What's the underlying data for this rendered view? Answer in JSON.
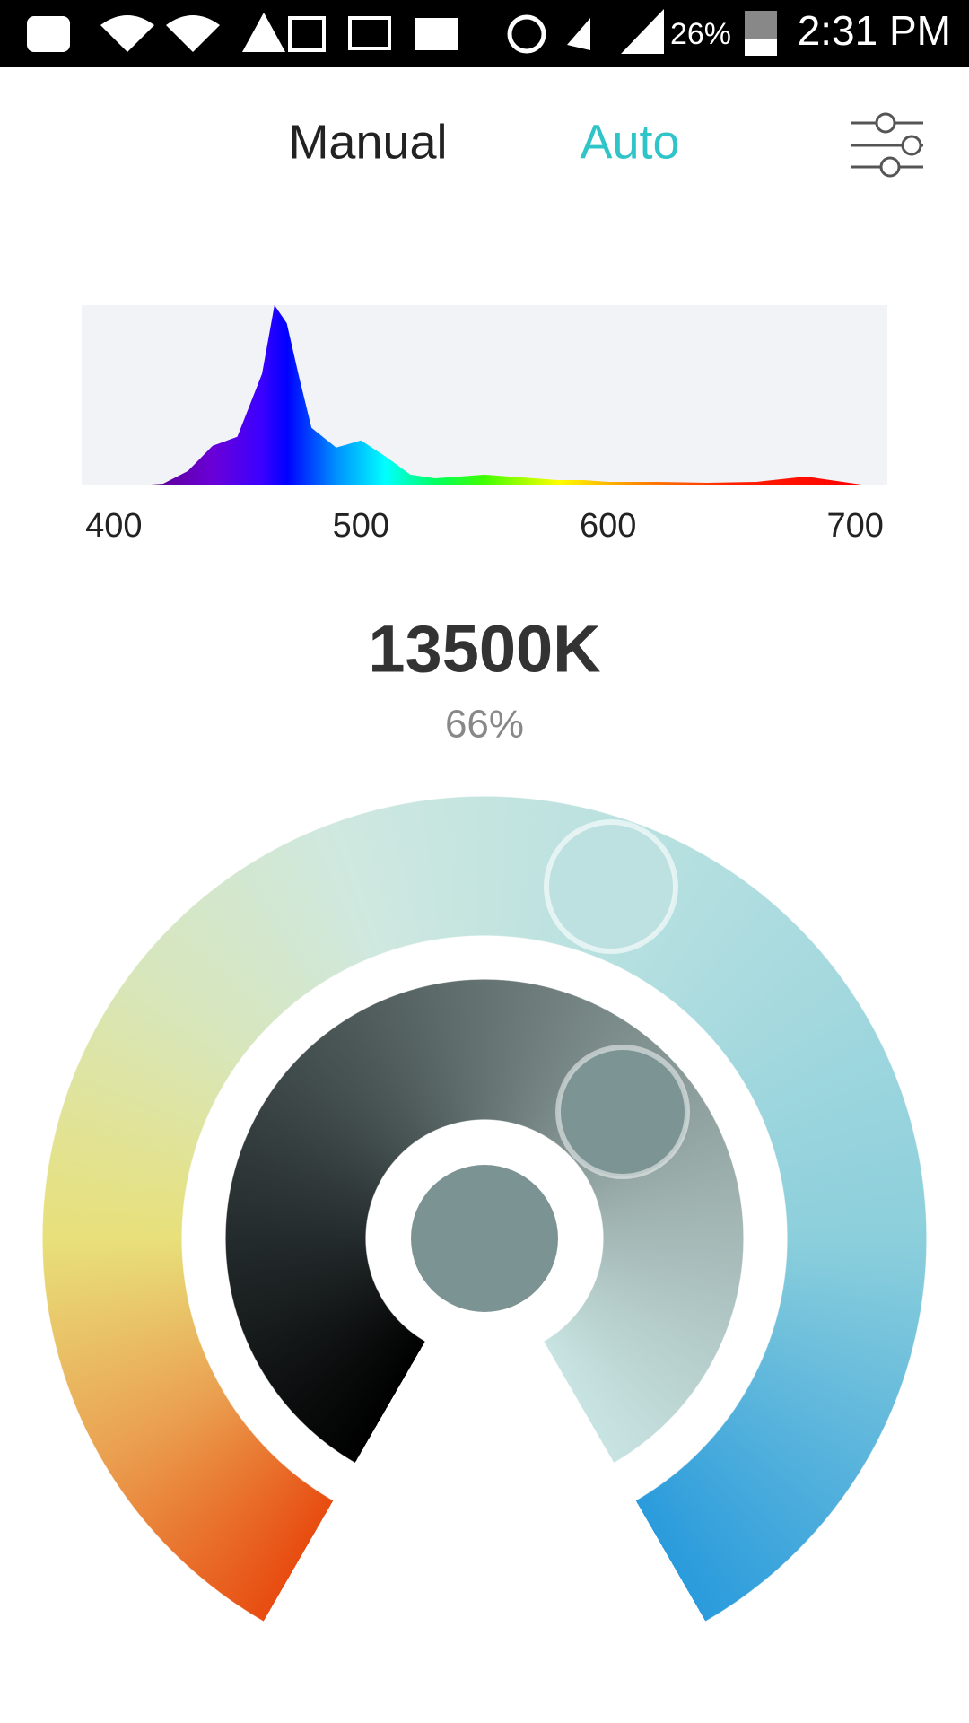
{
  "status_bar": {
    "battery": "26%",
    "time": "2:31 PM"
  },
  "tabs": [
    "Manual",
    "Auto"
  ],
  "spectrum": {
    "type": "area",
    "x": [
      410,
      420,
      430,
      440,
      450,
      460,
      465,
      470,
      475,
      480,
      490,
      500,
      510,
      520,
      530,
      540,
      550,
      560,
      570,
      580,
      590,
      600,
      620,
      640,
      660,
      680,
      690,
      700,
      705
    ],
    "values": [
      0,
      1,
      8,
      22,
      27,
      62,
      100,
      90,
      60,
      32,
      21,
      25,
      16,
      6,
      4,
      5,
      6,
      5,
      4,
      3,
      3,
      2,
      2,
      1.5,
      2,
      5,
      3,
      1,
      0
    ],
    "xlim": [
      387,
      713
    ],
    "ylim": [
      0,
      100
    ],
    "xticks": [
      400,
      500,
      600,
      700
    ]
  },
  "color_temperature": "13500K",
  "intensity": "66%"
}
